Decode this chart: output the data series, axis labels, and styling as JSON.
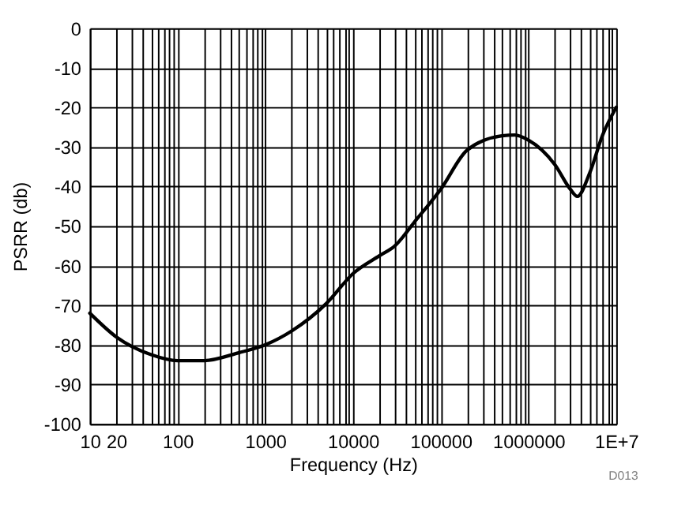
{
  "chart_data": {
    "type": "line",
    "xlabel": "Frequency (Hz)",
    "ylabel": "PSRR (db)",
    "x": [
      10,
      20,
      50,
      100,
      200,
      500,
      1000,
      2000,
      5000,
      10000,
      20000,
      30000,
      50000,
      100000,
      200000,
      500000,
      700000,
      1000000,
      2000000,
      3000000,
      3600000,
      5000000,
      7000000,
      10000000
    ],
    "series": [
      {
        "color": "#000000",
        "values": [
          -72,
          -78,
          -82.5,
          -84,
          -84,
          -82,
          -80,
          -76.5,
          -69.5,
          -62,
          -57.5,
          -55,
          -49,
          -40.7,
          -30.8,
          -27.2,
          -27,
          -28.3,
          -34.5,
          -40.7,
          -42.5,
          -36.5,
          -27,
          -20
        ]
      }
    ],
    "log": "x",
    "xlim": [
      10,
      10000000
    ],
    "ylim": [
      -100,
      0
    ],
    "xticks": [
      10,
      20,
      {
        "value": 30,
        "label": null
      },
      {
        "value": 40,
        "label": null
      },
      {
        "value": 50,
        "label": null
      },
      {
        "value": 60,
        "label": null
      },
      {
        "value": 70,
        "label": null
      },
      {
        "value": 80,
        "label": null
      },
      {
        "value": 90,
        "label": null
      },
      100,
      {
        "value": 200,
        "label": null
      },
      {
        "value": 300,
        "label": null
      },
      {
        "value": 400,
        "label": null
      },
      {
        "value": 500,
        "label": null
      },
      {
        "value": 600,
        "label": null
      },
      {
        "value": 700,
        "label": null
      },
      {
        "value": 800,
        "label": null
      },
      {
        "value": 900,
        "label": null
      },
      1000,
      {
        "value": 2000,
        "label": null
      },
      {
        "value": 3000,
        "label": null
      },
      {
        "value": 4000,
        "label": null
      },
      {
        "value": 5000,
        "label": null
      },
      {
        "value": 6000,
        "label": null
      },
      {
        "value": 7000,
        "label": null
      },
      {
        "value": 8000,
        "label": null
      },
      {
        "value": 9000,
        "label": null
      },
      10000,
      {
        "value": 20000,
        "label": null
      },
      {
        "value": 30000,
        "label": null
      },
      {
        "value": 40000,
        "label": null
      },
      {
        "value": 50000,
        "label": null
      },
      {
        "value": 60000,
        "label": null
      },
      {
        "value": 70000,
        "label": null
      },
      {
        "value": 80000,
        "label": null
      },
      {
        "value": 90000,
        "label": null
      },
      100000,
      {
        "value": 200000,
        "label": null
      },
      {
        "value": 300000,
        "label": null
      },
      {
        "value": 400000,
        "label": null
      },
      {
        "value": 500000,
        "label": null
      },
      {
        "value": 600000,
        "label": null
      },
      {
        "value": 700000,
        "label": null
      },
      {
        "value": 800000,
        "label": null
      },
      {
        "value": 900000,
        "label": null
      },
      1000000,
      {
        "value": 2000000,
        "label": null
      },
      {
        "value": 3000000,
        "label": null
      },
      {
        "value": 4000000,
        "label": null
      },
      {
        "value": 5000000,
        "label": null
      },
      {
        "value": 6000000,
        "label": null
      },
      {
        "value": 7000000,
        "label": null
      },
      {
        "value": 8000000,
        "label": null
      },
      {
        "value": 9000000,
        "label": null
      },
      {
        "value": 10000000,
        "label": "1E+7"
      }
    ],
    "yticks": [
      -100,
      -90,
      -80,
      -70,
      -60,
      -50,
      -40,
      -30,
      -20,
      -10,
      0
    ],
    "grid": true,
    "marker": "none",
    "line_style": "solid",
    "annotations": [
      "D013"
    ]
  }
}
